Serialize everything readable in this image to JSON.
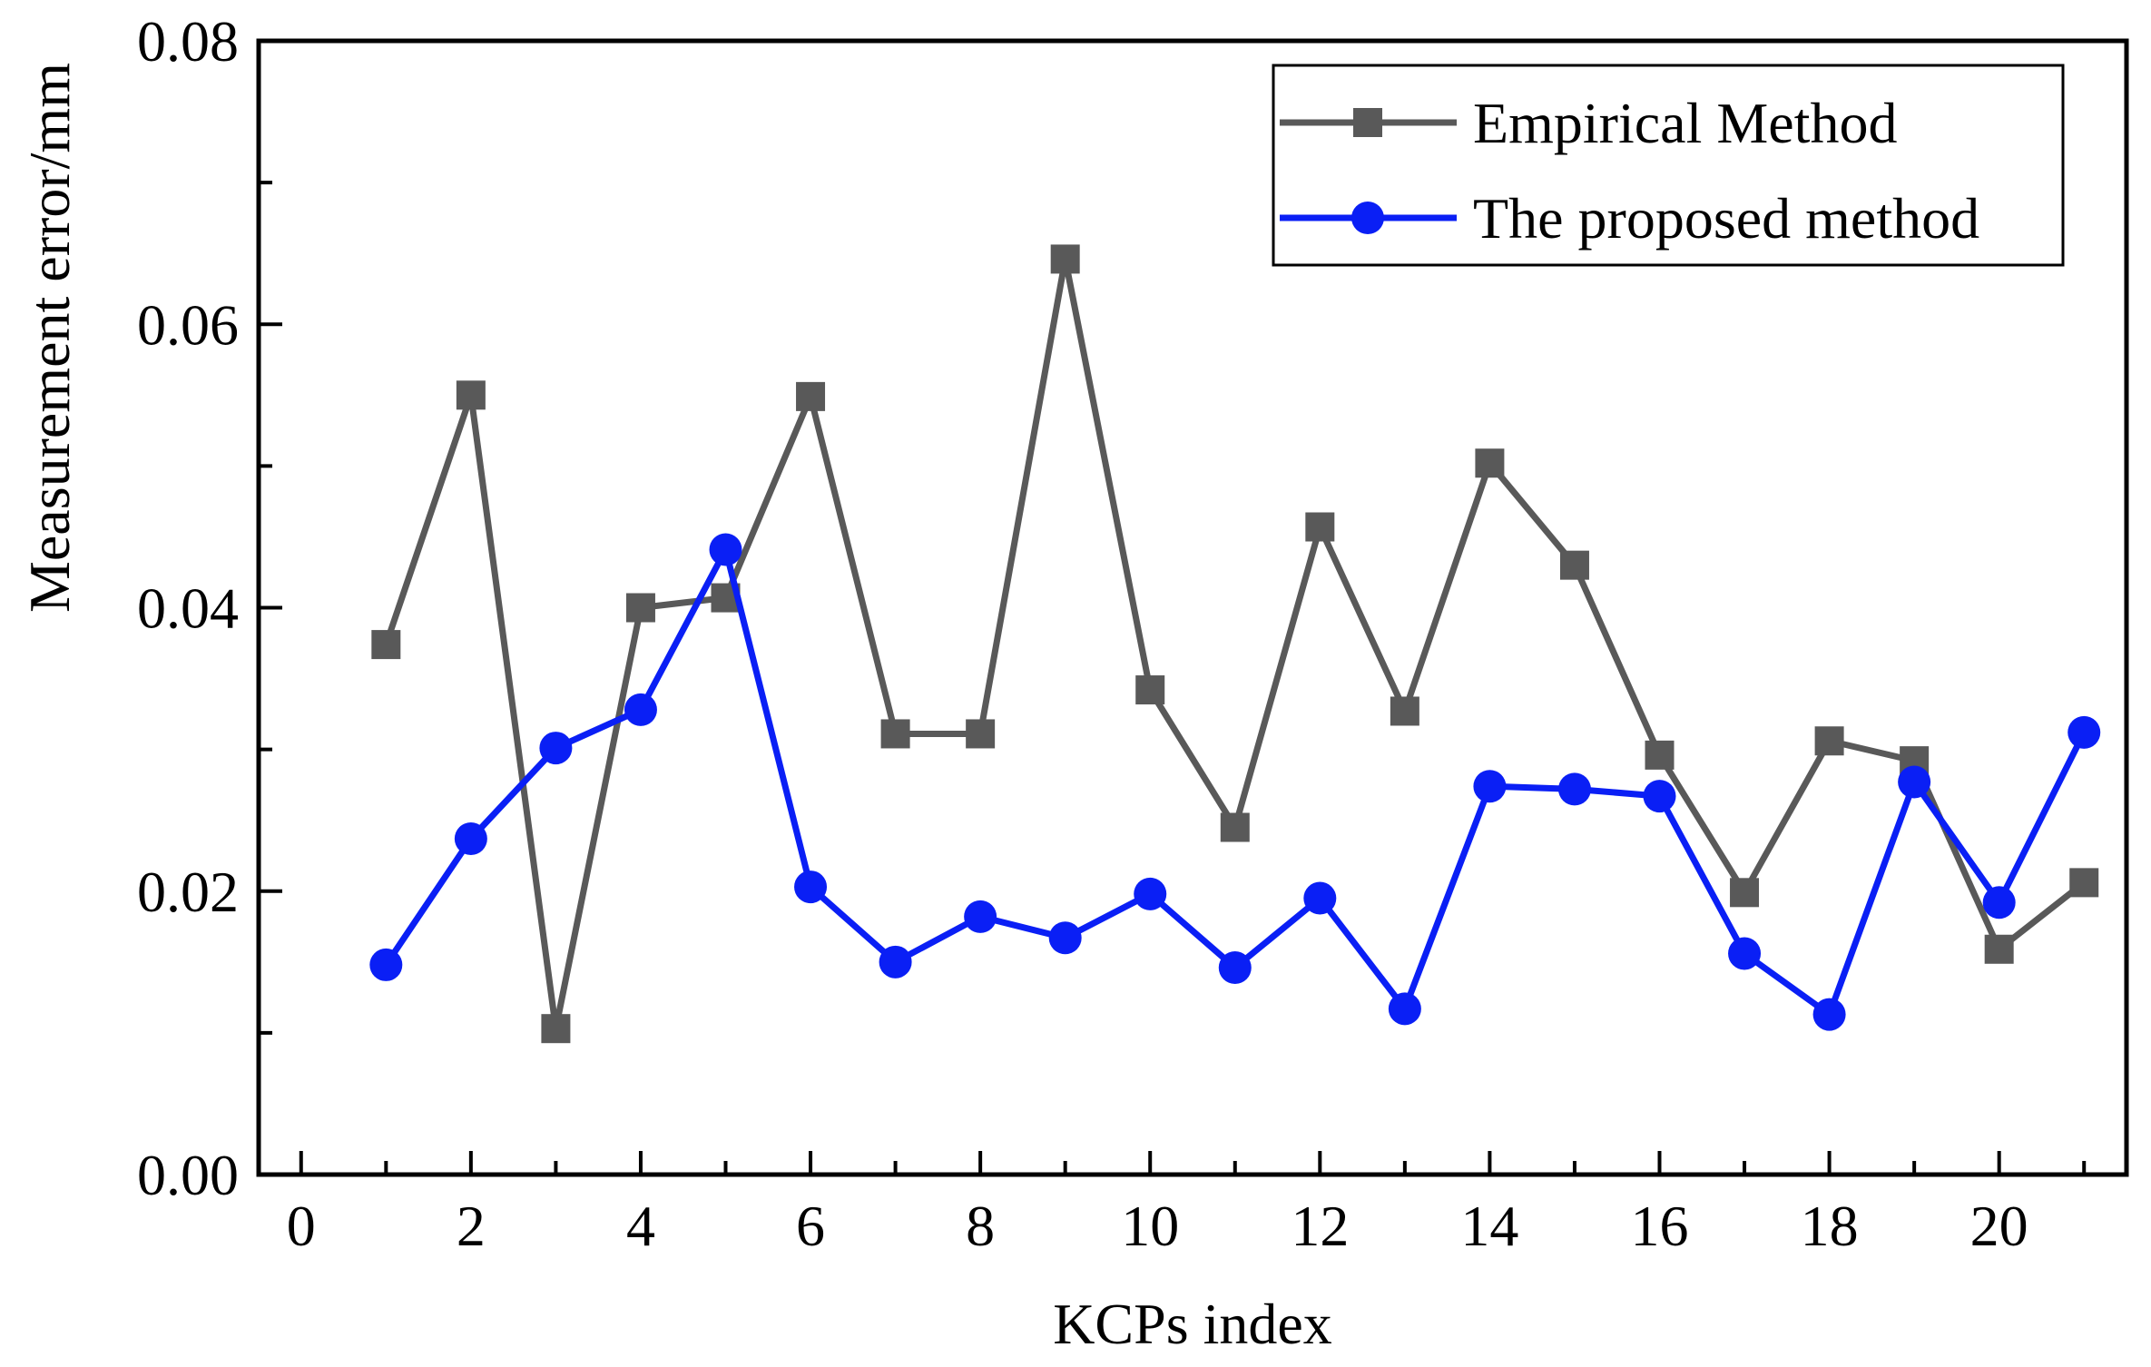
{
  "chart_data": {
    "type": "line",
    "title": "",
    "xlabel": "KCPs index",
    "ylabel": "Measurement error/mm",
    "xlim": [
      -0.5,
      21.5
    ],
    "ylim": [
      0,
      0.08
    ],
    "xticks": [
      0,
      2,
      4,
      6,
      8,
      10,
      12,
      14,
      16,
      18,
      20
    ],
    "xtick_labels": [
      "0",
      "2",
      "4",
      "6",
      "8",
      "10",
      "12",
      "14",
      "16",
      "18",
      "20"
    ],
    "yticks": [
      0.0,
      0.02,
      0.04,
      0.06,
      0.08
    ],
    "ytick_labels": [
      "0.00",
      "0.02",
      "0.04",
      "0.06",
      "0.08"
    ],
    "grid": false,
    "legend_position": "top-right",
    "x": [
      1,
      2,
      3,
      4,
      5,
      6,
      7,
      8,
      9,
      10,
      11,
      12,
      13,
      14,
      15,
      16,
      17,
      18,
      19,
      20,
      21
    ],
    "series": [
      {
        "name": "Empirical Method",
        "color": "#595959",
        "marker": "square",
        "values": [
          0.0374,
          0.055,
          0.0103,
          0.04,
          0.0407,
          0.0549,
          0.0311,
          0.0311,
          0.0646,
          0.0342,
          0.0245,
          0.0457,
          0.0327,
          0.0502,
          0.043,
          0.0296,
          0.0199,
          0.0306,
          0.0292,
          0.0159,
          0.0206
        ]
      },
      {
        "name": "The proposed method",
        "color": "#0a1ff5",
        "marker": "circle",
        "values": [
          0.0148,
          0.0237,
          0.0301,
          0.0328,
          0.0441,
          0.0203,
          0.015,
          0.0182,
          0.0167,
          0.0198,
          0.0146,
          0.0195,
          0.0117,
          0.0274,
          0.0272,
          0.0267,
          0.0156,
          0.0113,
          0.0277,
          0.0192,
          0.0312
        ]
      }
    ]
  }
}
